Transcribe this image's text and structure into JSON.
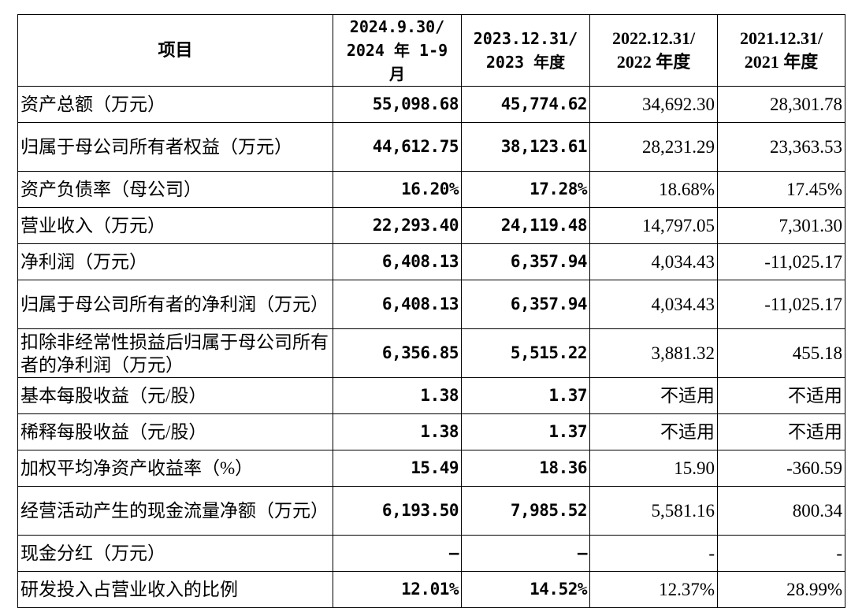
{
  "table": {
    "header": [
      [
        "项目"
      ],
      [
        "2024.9.30/",
        "2024 年 1-9 月"
      ],
      [
        "2023.12.31/",
        "2023 年度"
      ],
      [
        "2022.12.31/",
        "2022 年度"
      ],
      [
        "2021.12.31/",
        "2021 年度"
      ]
    ],
    "rows": [
      [
        "资产总额（万元）",
        "55,098.68",
        "45,774.62",
        "34,692.30",
        "28,301.78"
      ],
      [
        "归属于母公司所有者权益（万元）",
        "44,612.75",
        "38,123.61",
        "28,231.29",
        "23,363.53"
      ],
      [
        "资产负债率（母公司）",
        "16.20%",
        "17.28%",
        "18.68%",
        "17.45%"
      ],
      [
        "营业收入（万元）",
        "22,293.40",
        "24,119.48",
        "14,797.05",
        "7,301.30"
      ],
      [
        "净利润（万元）",
        "6,408.13",
        "6,357.94",
        "4,034.43",
        "-11,025.17"
      ],
      [
        "归属于母公司所有者的净利润（万元）",
        "6,408.13",
        "6,357.94",
        "4,034.43",
        "-11,025.17"
      ],
      [
        "扣除非经常性损益后归属于母公司所有者的净利润（万元）",
        "6,356.85",
        "5,515.22",
        "3,881.32",
        "455.18"
      ],
      [
        "基本每股收益（元/股）",
        "1.38",
        "1.37",
        "不适用",
        "不适用"
      ],
      [
        "稀释每股收益（元/股）",
        "1.38",
        "1.37",
        "不适用",
        "不适用"
      ],
      [
        "加权平均净资产收益率（%）",
        "15.49",
        "18.36",
        "15.90",
        "-360.59"
      ],
      [
        "经营活动产生的现金流量净额（万元）",
        "6,193.50",
        "7,985.52",
        "5,581.16",
        "800.34"
      ],
      [
        "现金分红（万元）",
        "–",
        "–",
        "-",
        "-"
      ],
      [
        "研发投入占营业收入的比例",
        "12.01%",
        "14.52%",
        "12.37%",
        "28.99%"
      ]
    ]
  }
}
